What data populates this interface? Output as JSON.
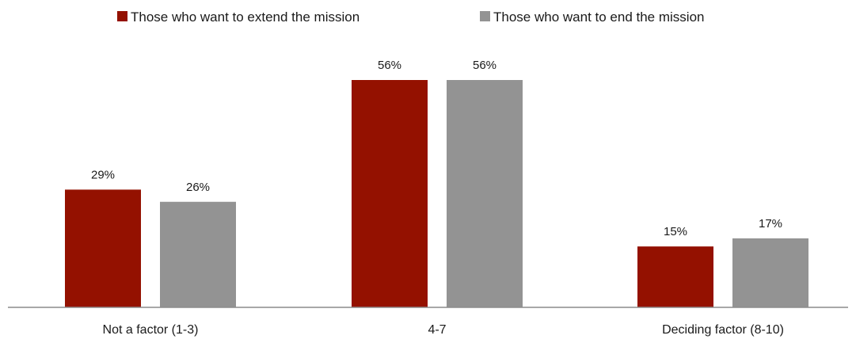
{
  "chart_data": {
    "type": "bar",
    "categories": [
      "Not a factor (1-3)",
      "4-7",
      "Deciding factor (8-10)"
    ],
    "series": [
      {
        "name": "Those who want to extend the mission",
        "color": "#941100",
        "values": [
          29,
          56,
          15
        ],
        "labels": [
          "29%",
          "56%",
          "15%"
        ]
      },
      {
        "name": "Those who want to end the mission",
        "color": "#939393",
        "values": [
          26,
          56,
          17
        ],
        "labels": [
          "26%",
          "56%",
          "17%"
        ]
      }
    ],
    "legend_position": "top",
    "grid": false,
    "ylim": [
      0,
      60
    ],
    "unit": "%"
  }
}
